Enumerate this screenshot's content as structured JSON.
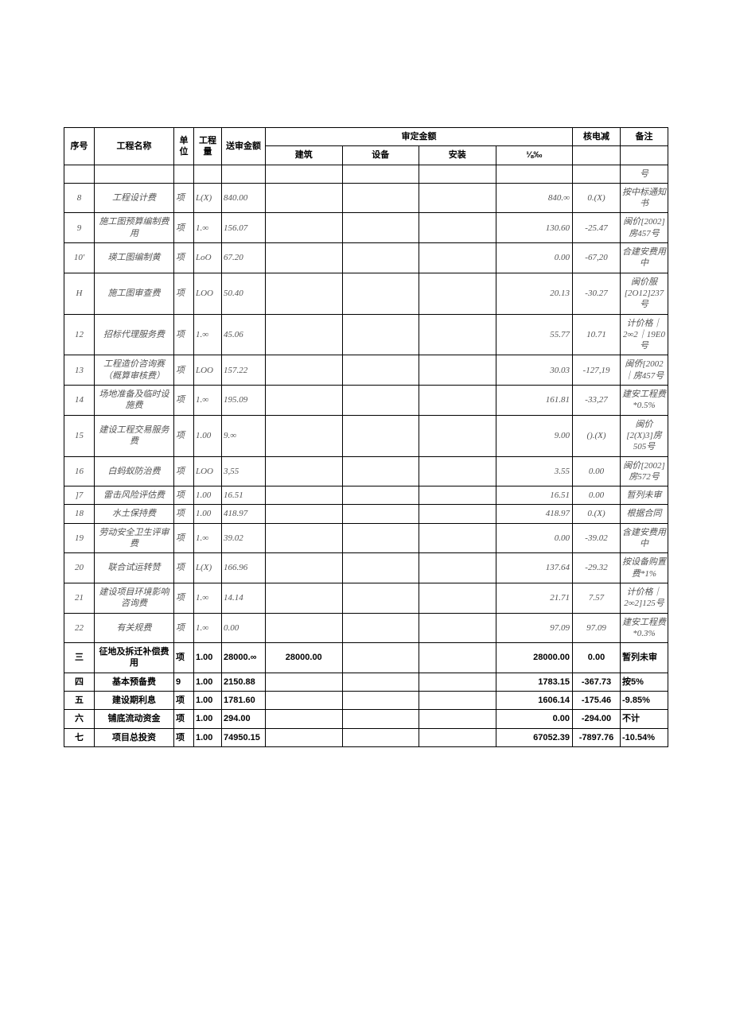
{
  "header": {
    "seq": "序号",
    "name": "工程名称",
    "unit": "单位",
    "qty": "工程量",
    "submit": "送审金额",
    "approved": "审定金额",
    "build": "建筑",
    "equip": "设备",
    "install": "安装",
    "subtotal": "⅛‰",
    "reduce": "核电减",
    "note": "备注"
  },
  "rows": [
    {
      "seq": "",
      "name": "",
      "unit": "",
      "qty": "",
      "submit": "",
      "build": "",
      "equip": "",
      "install": "",
      "sub": "",
      "reduce": "",
      "note": "号",
      "italic": true
    },
    {
      "seq": "8",
      "name": "工程设计费",
      "unit": "项",
      "qty": "L(X)",
      "submit": "840.00",
      "build": "",
      "equip": "",
      "install": "",
      "sub": "840.∞",
      "reduce": "0.(X)",
      "note": "按中标通知书",
      "italic": true
    },
    {
      "seq": "9",
      "name": "施工图预算编制费用",
      "unit": "项",
      "qty": "1.∞",
      "submit": "156.07",
      "build": "",
      "equip": "",
      "install": "",
      "sub": "130.60",
      "reduce": "-25.47",
      "note": "闽价[2002]房457号",
      "italic": true
    },
    {
      "seq": "10'",
      "name": "瑛工图编制黄",
      "unit": "项",
      "qty": "LoO",
      "submit": "67.20",
      "build": "",
      "equip": "",
      "install": "",
      "sub": "0.00",
      "reduce": "-67,20",
      "note": "合建安费用中",
      "italic": true
    },
    {
      "seq": "H",
      "name": "施工图审查费",
      "unit": "项",
      "qty": "LOO",
      "submit": "50.40",
      "build": "",
      "equip": "",
      "install": "",
      "sub": "20.13",
      "reduce": "-30.27",
      "note": "闽价服[2O12]237号",
      "italic": true
    },
    {
      "seq": "12",
      "name": "招标代理服务费",
      "unit": "项",
      "qty": "1.∞",
      "submit": "45.06",
      "build": "",
      "equip": "",
      "install": "",
      "sub": "55.77",
      "reduce": "10.71",
      "note": "计价格｜2∞2｜19E0号",
      "italic": true
    },
    {
      "seq": "13",
      "name": "工程造价咨询赛（概算审核费）",
      "unit": "项",
      "qty": "LOO",
      "submit": "157.22",
      "build": "",
      "equip": "",
      "install": "",
      "sub": "30.03",
      "reduce": "-127,19",
      "note": "闽侨[2002｜房457号",
      "italic": true
    },
    {
      "seq": "14",
      "name": "场地准备及临时设施费",
      "unit": "项",
      "qty": "1.∞",
      "submit": "195.09",
      "build": "",
      "equip": "",
      "install": "",
      "sub": "161.81",
      "reduce": "-33,27",
      "note": "建安工程费*0.5%",
      "italic": true
    },
    {
      "seq": "15",
      "name": "建设工程交易服务费",
      "unit": "项",
      "qty": "1.00",
      "submit": "9.∞",
      "build": "",
      "equip": "",
      "install": "",
      "sub": "9.00",
      "reduce": "().(X)",
      "note": "闽价[2(X)3]房505号",
      "italic": true
    },
    {
      "seq": "16",
      "name": "白蚂蚁防治费",
      "unit": "项",
      "qty": "LOO",
      "submit": "3,55",
      "build": "",
      "equip": "",
      "install": "",
      "sub": "3.55",
      "reduce": "0.00",
      "note": "闽价[2002]房572号",
      "italic": true
    },
    {
      "seq": "]7",
      "name": "雷击风险评估费",
      "unit": "项",
      "qty": "1.00",
      "submit": "16.51",
      "build": "",
      "equip": "",
      "install": "",
      "sub": "16.51",
      "reduce": "0.00",
      "note": "暂列未审",
      "italic": true
    },
    {
      "seq": "18",
      "name": "水土保持费",
      "unit": "项",
      "qty": "1.00",
      "submit": "418.97",
      "build": "",
      "equip": "",
      "install": "",
      "sub": "418.97",
      "reduce": "0.(X)",
      "note": "根据合同",
      "italic": true
    },
    {
      "seq": "19",
      "name": "劳动安全卫生评审费",
      "unit": "项",
      "qty": "1.∞",
      "submit": "39.02",
      "build": "",
      "equip": "",
      "install": "",
      "sub": "0.00",
      "reduce": "-39.02",
      "note": "含建安费用中",
      "italic": true
    },
    {
      "seq": "20",
      "name": "联合试运转赞",
      "unit": "项",
      "qty": "L(X)",
      "submit": "166.96",
      "build": "",
      "equip": "",
      "install": "",
      "sub": "137.64",
      "reduce": "-29.32",
      "note": "按设备购置费*1%",
      "italic": true
    },
    {
      "seq": "21",
      "name": "建设项目环境影响咨询费",
      "unit": "项",
      "qty": "1.∞",
      "submit": "14.14",
      "build": "",
      "equip": "",
      "install": "",
      "sub": "21.71",
      "reduce": "7.57",
      "note": "计价格｜2∞2]125号",
      "italic": true
    },
    {
      "seq": "22",
      "name": "有关规费",
      "unit": "项",
      "qty": "1.∞",
      "submit": "0.00",
      "build": "",
      "equip": "",
      "install": "",
      "sub": "97.09",
      "reduce": "97.09",
      "note": "建安工程费*0.3%",
      "italic": true
    },
    {
      "seq": "三",
      "name": "征地及拆迁补偿费用",
      "unit": "项",
      "qty": "1.00",
      "submit": "28000.∞",
      "build": "28000.00",
      "equip": "",
      "install": "",
      "sub": "28000.00",
      "reduce": "0.00",
      "note": "暂列未审",
      "bold": true
    },
    {
      "seq": "四",
      "name": "基本预备费",
      "unit": "9",
      "qty": "1.00",
      "submit": "2150.88",
      "build": "",
      "equip": "",
      "install": "",
      "sub": "1783.15",
      "reduce": "-367.73",
      "note": "按5%",
      "bold": true
    },
    {
      "seq": "五",
      "name": "建设期利息",
      "unit": "项",
      "qty": "1.00",
      "submit": "1781.60",
      "build": "",
      "equip": "",
      "install": "",
      "sub": "1606.14",
      "reduce": "-175.46",
      "note": "-9.85%",
      "bold": true
    },
    {
      "seq": "六",
      "name": "铺底流动资金",
      "unit": "项",
      "qty": "1.00",
      "submit": "294.00",
      "build": "",
      "equip": "",
      "install": "",
      "sub": "0.00",
      "reduce": "-294.00",
      "note": "不计",
      "bold": true
    },
    {
      "seq": "七",
      "name": "项目总投资",
      "unit": "项",
      "qty": "1.00",
      "submit": "74950.15",
      "build": "",
      "equip": "",
      "install": "",
      "sub": "67052.39",
      "reduce": "-7897.76",
      "note": "-10.54%",
      "bold": true
    }
  ]
}
